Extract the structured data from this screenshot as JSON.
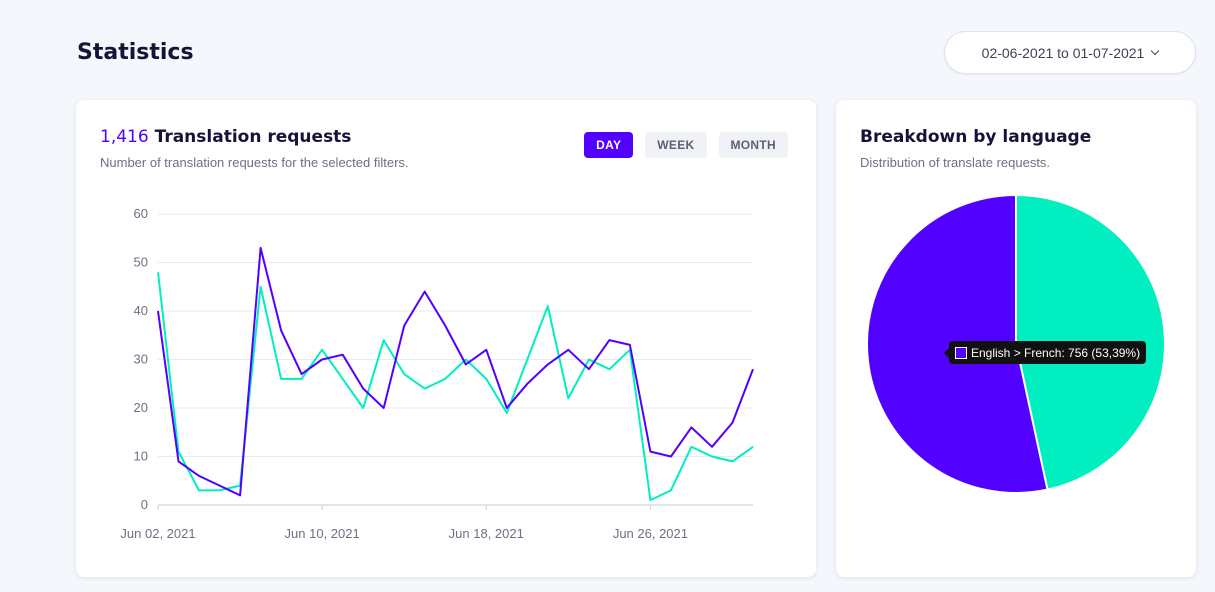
{
  "page": {
    "title": "Statistics"
  },
  "date_range": {
    "label": "02-06-2021 to 01-07-2021"
  },
  "requests_card": {
    "count": "1,416",
    "title": "Translation requests",
    "subtitle": "Number of translation requests for the selected filters.",
    "tabs": [
      {
        "label": "DAY",
        "active": true
      },
      {
        "label": "WEEK",
        "active": false
      },
      {
        "label": "MONTH",
        "active": false
      }
    ]
  },
  "language_card": {
    "title": "Breakdown by language",
    "subtitle": "Distribution of translate requests.",
    "tooltip": "English > French: 756 (53,39%)"
  },
  "colors": {
    "purple": "#5200ff",
    "teal": "#00eec0",
    "grid": "#e8eaef",
    "axis_text": "#6b7084"
  },
  "chart_data": [
    {
      "type": "line",
      "x": [
        "2021-06-02",
        "2021-06-03",
        "2021-06-04",
        "2021-06-05",
        "2021-06-06",
        "2021-06-07",
        "2021-06-08",
        "2021-06-09",
        "2021-06-10",
        "2021-06-11",
        "2021-06-12",
        "2021-06-13",
        "2021-06-14",
        "2021-06-15",
        "2021-06-16",
        "2021-06-17",
        "2021-06-18",
        "2021-06-19",
        "2021-06-20",
        "2021-06-21",
        "2021-06-22",
        "2021-06-23",
        "2021-06-24",
        "2021-06-25",
        "2021-06-26",
        "2021-06-27",
        "2021-06-28",
        "2021-06-29",
        "2021-06-30",
        "2021-07-01"
      ],
      "x_ticks": [
        "Jun 02, 2021",
        "Jun 10, 2021",
        "Jun 18, 2021",
        "Jun 26, 2021"
      ],
      "y_ticks": [
        0,
        10,
        20,
        30,
        40,
        50,
        60
      ],
      "ylim": [
        0,
        60
      ],
      "grid": true,
      "series": [
        {
          "color": "#5200ff",
          "values": [
            40,
            9,
            6,
            4,
            2,
            53,
            36,
            27,
            30,
            31,
            24,
            20,
            37,
            44,
            37,
            29,
            32,
            20,
            25,
            29,
            32,
            28,
            34,
            33,
            11,
            10,
            16,
            12,
            17,
            28
          ]
        },
        {
          "color": "#00eec0",
          "values": [
            48,
            11,
            3,
            3,
            4,
            45,
            26,
            26,
            32,
            26,
            20,
            34,
            27,
            24,
            26,
            30,
            26,
            19,
            30,
            41,
            22,
            30,
            28,
            32,
            1,
            3,
            12,
            10,
            9,
            12
          ]
        }
      ]
    },
    {
      "type": "pie",
      "slices": [
        {
          "label": "English > French",
          "value": 756,
          "percent": 53.39,
          "color": "#5200ff"
        },
        {
          "value": 660,
          "percent": 46.61,
          "color": "#00eec0"
        }
      ]
    }
  ]
}
